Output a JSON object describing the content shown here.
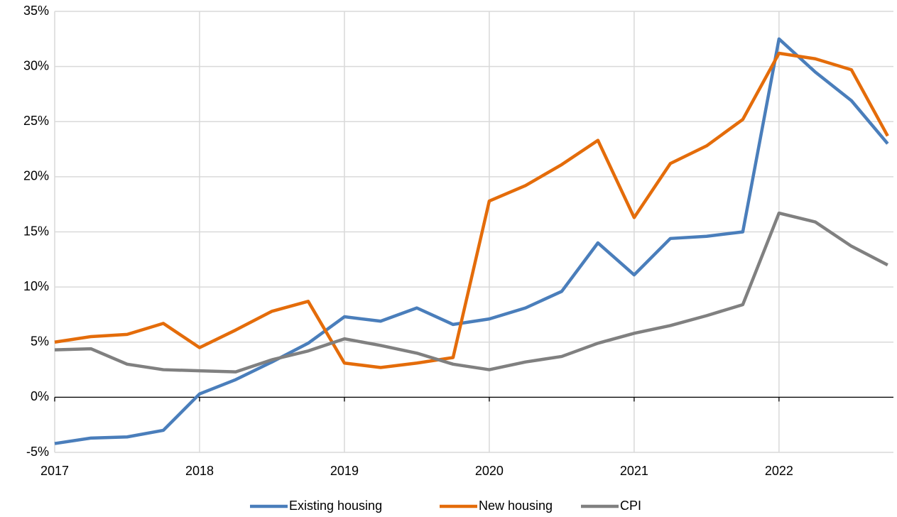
{
  "chart_data": {
    "type": "line",
    "x": [
      2017,
      2017.25,
      2017.5,
      2017.75,
      2018,
      2018.25,
      2018.5,
      2018.75,
      2019,
      2019.25,
      2019.5,
      2019.75,
      2020,
      2020.25,
      2020.5,
      2020.75,
      2021,
      2021.25,
      2021.5,
      2021.75,
      2022,
      2022.25,
      2022.5,
      2022.75
    ],
    "series": [
      {
        "name": "Existing housing",
        "color": "#4a7ebb",
        "values": [
          -4.2,
          -3.7,
          -3.6,
          -3.0,
          0.3,
          1.6,
          3.2,
          4.9,
          7.3,
          6.9,
          8.1,
          6.6,
          7.1,
          8.1,
          9.6,
          14.0,
          11.1,
          14.4,
          14.6,
          15.0,
          32.5,
          29.5,
          26.9,
          23.0
        ]
      },
      {
        "name": "New housing",
        "color": "#e46c0a",
        "values": [
          5.0,
          5.5,
          5.7,
          6.7,
          4.5,
          6.1,
          7.8,
          8.7,
          3.1,
          2.7,
          3.1,
          3.6,
          17.8,
          19.2,
          21.1,
          23.3,
          16.3,
          21.2,
          22.8,
          25.2,
          31.2,
          30.7,
          29.7,
          23.7
        ]
      },
      {
        "name": "CPI",
        "color": "#808080",
        "values": [
          4.3,
          4.4,
          3.0,
          2.5,
          2.4,
          2.3,
          3.4,
          4.2,
          5.3,
          4.7,
          4.0,
          3.0,
          2.5,
          3.2,
          3.7,
          4.9,
          5.8,
          6.5,
          7.4,
          8.4,
          16.7,
          15.9,
          13.7,
          12.0
        ]
      }
    ],
    "xlim": [
      2017,
      2022.79
    ],
    "xticks": [
      2017,
      2018,
      2019,
      2020,
      2021,
      2022
    ],
    "ylim": [
      -5,
      35
    ],
    "yticks": [
      {
        "value": -5,
        "label": "-5%"
      },
      {
        "value": 0,
        "label": "0%"
      },
      {
        "value": 5,
        "label": "5%"
      },
      {
        "value": 10,
        "label": "10%"
      },
      {
        "value": 15,
        "label": "15%"
      },
      {
        "value": 20,
        "label": "20%"
      },
      {
        "value": 25,
        "label": "25%"
      },
      {
        "value": 30,
        "label": "30%"
      },
      {
        "value": 35,
        "label": "35%"
      }
    ],
    "grid": true,
    "legend": "bottom"
  }
}
